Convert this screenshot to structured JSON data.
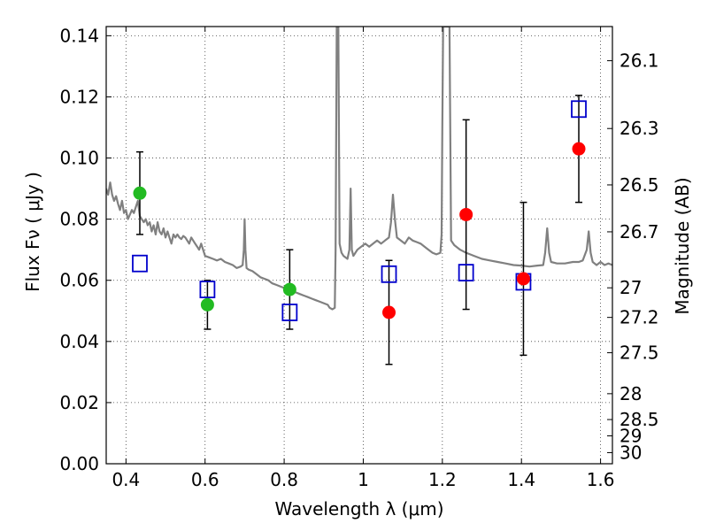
{
  "chart_data": {
    "type": "scatter",
    "xlabel": "Wavelength  λ (μm)",
    "ylabel": "Flux  Fν  ( μJy )",
    "y2label": "Magnitude (AB)",
    "xlim": [
      0.35,
      1.63
    ],
    "ylim": [
      0.0,
      0.143
    ],
    "grid": true,
    "x_ticks": [
      {
        "value": 0.4,
        "label": "0.4"
      },
      {
        "value": 0.6,
        "label": "0.6"
      },
      {
        "value": 0.8,
        "label": "0.8"
      },
      {
        "value": 1.0,
        "label": "1"
      },
      {
        "value": 1.2,
        "label": "1.2"
      },
      {
        "value": 1.4,
        "label": "1.4"
      },
      {
        "value": 1.6,
        "label": "1.6"
      }
    ],
    "y_ticks": [
      {
        "value": 0.0,
        "label": "0.00"
      },
      {
        "value": 0.02,
        "label": "0.02"
      },
      {
        "value": 0.04,
        "label": "0.04"
      },
      {
        "value": 0.06,
        "label": "0.06"
      },
      {
        "value": 0.08,
        "label": "0.08"
      },
      {
        "value": 0.1,
        "label": "0.10"
      },
      {
        "value": 0.12,
        "label": "0.12"
      },
      {
        "value": 0.14,
        "label": "0.14"
      }
    ],
    "y2_ticks": [
      {
        "value": 26.1,
        "label": "26.1"
      },
      {
        "value": 26.3,
        "label": "26.3"
      },
      {
        "value": 26.5,
        "label": "26.5"
      },
      {
        "value": 26.7,
        "label": "26.7"
      },
      {
        "value": 27.0,
        "label": "27"
      },
      {
        "value": 27.2,
        "label": "27.2"
      },
      {
        "value": 27.5,
        "label": "27.5"
      },
      {
        "value": 28.0,
        "label": "28"
      },
      {
        "value": 28.5,
        "label": "28.5"
      },
      {
        "value": 29.0,
        "label": "29"
      },
      {
        "value": 30.0,
        "label": "30"
      }
    ],
    "series": [
      {
        "marker": "circle",
        "color": "#22bb22",
        "points": [
          {
            "x": 0.435,
            "y": 0.0885,
            "err": 0.0135
          },
          {
            "x": 0.606,
            "y": 0.052,
            "err": 0.008
          },
          {
            "x": 0.814,
            "y": 0.057,
            "err": 0.013
          }
        ]
      },
      {
        "marker": "circle",
        "color": "#ff0000",
        "points": [
          {
            "x": 1.065,
            "y": 0.0495,
            "err": 0.017
          },
          {
            "x": 1.26,
            "y": 0.0815,
            "err": 0.031
          },
          {
            "x": 1.405,
            "y": 0.0605,
            "err": 0.025
          },
          {
            "x": 1.545,
            "y": 0.103,
            "err": 0.0175
          }
        ]
      },
      {
        "marker": "open-square",
        "color": "#0000cc",
        "points": [
          {
            "x": 0.435,
            "y": 0.0655
          },
          {
            "x": 0.606,
            "y": 0.057
          },
          {
            "x": 0.814,
            "y": 0.0495
          },
          {
            "x": 1.065,
            "y": 0.062
          },
          {
            "x": 1.26,
            "y": 0.0625
          },
          {
            "x": 1.405,
            "y": 0.0595
          },
          {
            "x": 1.545,
            "y": 0.116
          }
        ]
      },
      {
        "marker": "line",
        "color": "#808080",
        "points": [
          [
            0.35,
            0.09
          ],
          [
            0.355,
            0.088
          ],
          [
            0.36,
            0.092
          ],
          [
            0.365,
            0.088
          ],
          [
            0.37,
            0.086
          ],
          [
            0.375,
            0.0875
          ],
          [
            0.38,
            0.085
          ],
          [
            0.385,
            0.083
          ],
          [
            0.39,
            0.086
          ],
          [
            0.395,
            0.082
          ],
          [
            0.4,
            0.083
          ],
          [
            0.405,
            0.08
          ],
          [
            0.41,
            0.0815
          ],
          [
            0.415,
            0.083
          ],
          [
            0.42,
            0.082
          ],
          [
            0.425,
            0.084
          ],
          [
            0.43,
            0.086
          ],
          [
            0.435,
            0.081
          ],
          [
            0.44,
            0.08
          ],
          [
            0.445,
            0.079
          ],
          [
            0.45,
            0.08
          ],
          [
            0.455,
            0.078
          ],
          [
            0.46,
            0.079
          ],
          [
            0.465,
            0.076
          ],
          [
            0.47,
            0.078
          ],
          [
            0.475,
            0.075
          ],
          [
            0.48,
            0.079
          ],
          [
            0.485,
            0.076
          ],
          [
            0.49,
            0.075
          ],
          [
            0.495,
            0.077
          ],
          [
            0.5,
            0.074
          ],
          [
            0.505,
            0.076
          ],
          [
            0.51,
            0.074
          ],
          [
            0.515,
            0.072
          ],
          [
            0.52,
            0.075
          ],
          [
            0.525,
            0.074
          ],
          [
            0.53,
            0.075
          ],
          [
            0.535,
            0.074
          ],
          [
            0.54,
            0.0735
          ],
          [
            0.545,
            0.0745
          ],
          [
            0.55,
            0.074
          ],
          [
            0.555,
            0.073
          ],
          [
            0.56,
            0.072
          ],
          [
            0.565,
            0.074
          ],
          [
            0.57,
            0.073
          ],
          [
            0.575,
            0.072
          ],
          [
            0.58,
            0.071
          ],
          [
            0.585,
            0.07
          ],
          [
            0.59,
            0.072
          ],
          [
            0.595,
            0.07
          ],
          [
            0.6,
            0.068
          ],
          [
            0.61,
            0.0675
          ],
          [
            0.62,
            0.067
          ],
          [
            0.63,
            0.0665
          ],
          [
            0.64,
            0.067
          ],
          [
            0.65,
            0.066
          ],
          [
            0.66,
            0.0655
          ],
          [
            0.67,
            0.065
          ],
          [
            0.68,
            0.064
          ],
          [
            0.69,
            0.0645
          ],
          [
            0.695,
            0.065
          ],
          [
            0.698,
            0.07
          ],
          [
            0.7,
            0.08
          ],
          [
            0.702,
            0.07
          ],
          [
            0.705,
            0.064
          ],
          [
            0.71,
            0.0635
          ],
          [
            0.72,
            0.063
          ],
          [
            0.73,
            0.062
          ],
          [
            0.74,
            0.061
          ],
          [
            0.75,
            0.0605
          ],
          [
            0.76,
            0.06
          ],
          [
            0.77,
            0.059
          ],
          [
            0.78,
            0.0585
          ],
          [
            0.79,
            0.058
          ],
          [
            0.8,
            0.0575
          ],
          [
            0.81,
            0.057
          ],
          [
            0.82,
            0.0565
          ],
          [
            0.83,
            0.056
          ],
          [
            0.84,
            0.0555
          ],
          [
            0.85,
            0.055
          ],
          [
            0.86,
            0.0545
          ],
          [
            0.87,
            0.054
          ],
          [
            0.88,
            0.0535
          ],
          [
            0.89,
            0.053
          ],
          [
            0.9,
            0.0525
          ],
          [
            0.91,
            0.052
          ],
          [
            0.915,
            0.051
          ],
          [
            0.922,
            0.0505
          ],
          [
            0.928,
            0.051
          ],
          [
            0.93,
            0.07
          ],
          [
            0.933,
            0.143
          ],
          [
            0.937,
            0.143
          ],
          [
            0.94,
            0.072
          ],
          [
            0.945,
            0.069
          ],
          [
            0.95,
            0.068
          ],
          [
            0.96,
            0.067
          ],
          [
            0.965,
            0.07
          ],
          [
            0.968,
            0.09
          ],
          [
            0.971,
            0.07
          ],
          [
            0.975,
            0.068
          ],
          [
            0.985,
            0.07
          ],
          [
            0.995,
            0.071
          ],
          [
            1.005,
            0.072
          ],
          [
            1.015,
            0.071
          ],
          [
            1.025,
            0.072
          ],
          [
            1.035,
            0.073
          ],
          [
            1.045,
            0.072
          ],
          [
            1.055,
            0.073
          ],
          [
            1.065,
            0.074
          ],
          [
            1.07,
            0.079
          ],
          [
            1.075,
            0.088
          ],
          [
            1.08,
            0.08
          ],
          [
            1.085,
            0.074
          ],
          [
            1.095,
            0.073
          ],
          [
            1.105,
            0.072
          ],
          [
            1.115,
            0.074
          ],
          [
            1.125,
            0.073
          ],
          [
            1.135,
            0.0725
          ],
          [
            1.145,
            0.072
          ],
          [
            1.155,
            0.071
          ],
          [
            1.165,
            0.07
          ],
          [
            1.175,
            0.069
          ],
          [
            1.185,
            0.0685
          ],
          [
            1.195,
            0.069
          ],
          [
            1.198,
            0.075
          ],
          [
            1.2,
            0.11
          ],
          [
            1.202,
            0.143
          ],
          [
            1.218,
            0.143
          ],
          [
            1.222,
            0.073
          ],
          [
            1.23,
            0.0715
          ],
          [
            1.245,
            0.07
          ],
          [
            1.26,
            0.069
          ],
          [
            1.28,
            0.068
          ],
          [
            1.3,
            0.067
          ],
          [
            1.32,
            0.0665
          ],
          [
            1.34,
            0.066
          ],
          [
            1.36,
            0.0655
          ],
          [
            1.38,
            0.065
          ],
          [
            1.4,
            0.0648
          ],
          [
            1.42,
            0.0645
          ],
          [
            1.44,
            0.0648
          ],
          [
            1.455,
            0.065
          ],
          [
            1.46,
            0.069
          ],
          [
            1.465,
            0.077
          ],
          [
            1.47,
            0.069
          ],
          [
            1.475,
            0.066
          ],
          [
            1.49,
            0.0655
          ],
          [
            1.51,
            0.0655
          ],
          [
            1.53,
            0.066
          ],
          [
            1.545,
            0.066
          ],
          [
            1.555,
            0.0665
          ],
          [
            1.565,
            0.07
          ],
          [
            1.57,
            0.076
          ],
          [
            1.575,
            0.069
          ],
          [
            1.58,
            0.066
          ],
          [
            1.59,
            0.065
          ],
          [
            1.6,
            0.066
          ],
          [
            1.61,
            0.065
          ],
          [
            1.62,
            0.0655
          ],
          [
            1.63,
            0.065
          ]
        ]
      }
    ]
  }
}
